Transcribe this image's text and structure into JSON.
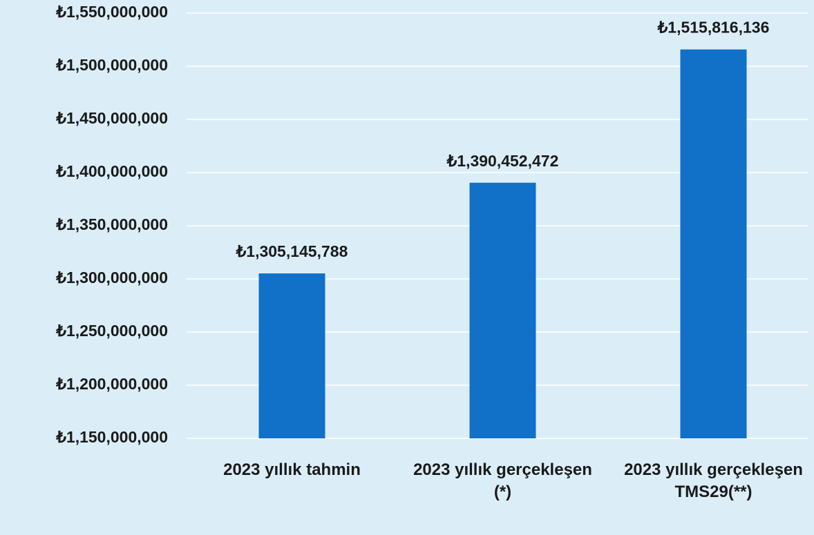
{
  "chart_data": {
    "type": "bar",
    "categories": [
      "2023 yıllık tahmin",
      "2023 yıllık gerçekleşen (*)",
      "2023 yıllık gerçekleşen TMS29(**)"
    ],
    "values": [
      1305145788,
      1390452472,
      1515816136
    ],
    "value_labels": [
      "₺1,305,145,788",
      "₺1,390,452,472",
      "₺1,515,816,136"
    ],
    "color": "#1170c8",
    "ylim": [
      1150000000,
      1550000000
    ],
    "yticks": [
      {
        "value": 1150000000,
        "label": "₺1,150,000,000"
      },
      {
        "value": 1200000000,
        "label": "₺1,200,000,000"
      },
      {
        "value": 1250000000,
        "label": "₺1,250,000,000"
      },
      {
        "value": 1300000000,
        "label": "₺1,300,000,000"
      },
      {
        "value": 1350000000,
        "label": "₺1,350,000,000"
      },
      {
        "value": 1400000000,
        "label": "₺1,400,000,000"
      },
      {
        "value": 1450000000,
        "label": "₺1,450,000,000"
      },
      {
        "value": 1500000000,
        "label": "₺1,500,000,000"
      },
      {
        "value": 1550000000,
        "label": "₺1,550,000,000"
      }
    ],
    "grid": true
  }
}
